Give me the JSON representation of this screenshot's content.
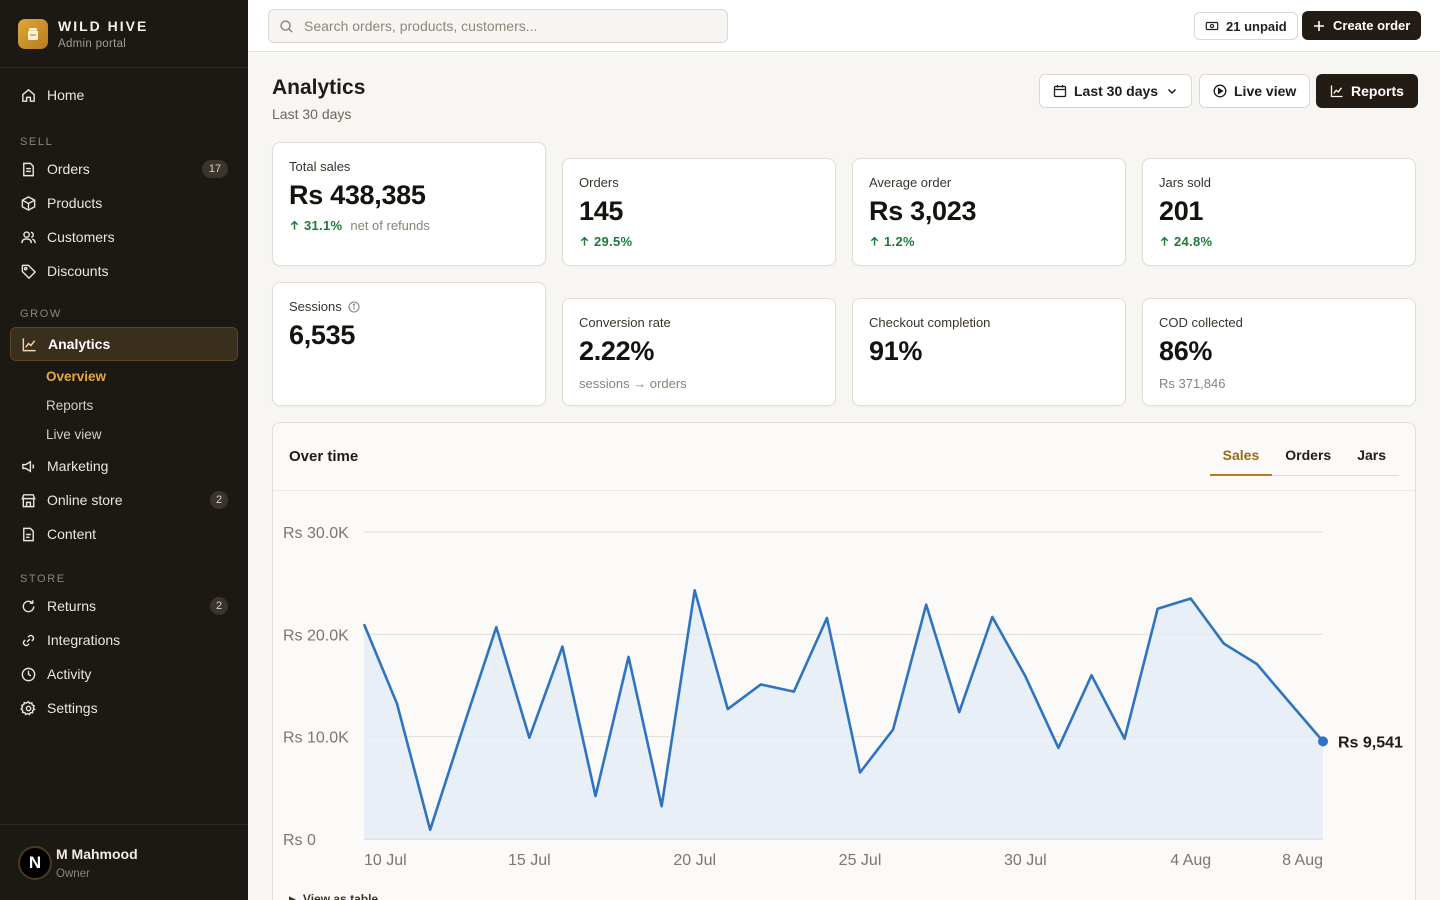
{
  "brand": {
    "name": "WILD HIVE",
    "subtitle": "Admin portal"
  },
  "nav": {
    "home": "Home",
    "sections": {
      "sell": "SELL",
      "grow": "GROW",
      "store": "STORE"
    },
    "orders": {
      "label": "Orders",
      "badge": "17"
    },
    "products": "Products",
    "customers": "Customers",
    "discounts": "Discounts",
    "analytics": "Analytics",
    "analytics_sub": [
      "Overview",
      "Reports",
      "Live view"
    ],
    "marketing": "Marketing",
    "online_store": {
      "label": "Online store",
      "badge": "2"
    },
    "content": "Content",
    "returns": {
      "label": "Returns",
      "badge": "2"
    },
    "integrations": "Integrations",
    "activity": "Activity",
    "settings": "Settings"
  },
  "user": {
    "initial": "N",
    "name": "M Mahmood",
    "role": "Owner"
  },
  "topbar": {
    "search_placeholder": "Search orders, products, customers...",
    "unpaid": "21 unpaid",
    "create": "Create order"
  },
  "page": {
    "title": "Analytics",
    "subtitle": "Last 30 days",
    "range": "Last 30 days",
    "live": "Live view",
    "reports": "Reports"
  },
  "kpis": {
    "total_sales": {
      "label": "Total sales",
      "value": "Rs 438,385",
      "delta": "31.1%",
      "note": "net of refunds"
    },
    "orders": {
      "label": "Orders",
      "value": "145",
      "delta": "29.5%"
    },
    "avg_order": {
      "label": "Average order",
      "value": "Rs 3,023",
      "delta": "1.2%"
    },
    "jars": {
      "label": "Jars sold",
      "value": "201",
      "delta": "24.8%"
    },
    "sessions": {
      "label": "Sessions",
      "value": "6,535"
    },
    "conversion": {
      "label": "Conversion rate",
      "value": "2.22%",
      "note": "sessions → orders"
    },
    "checkout": {
      "label": "Checkout completion",
      "value": "91%"
    },
    "cod": {
      "label": "COD collected",
      "value": "86%",
      "note": "Rs 371,846"
    }
  },
  "panel": {
    "title": "Over time",
    "tabs": [
      "Sales",
      "Orders",
      "Jars"
    ],
    "view_table": "View as table"
  },
  "colors": {
    "accent": "#b27d1f",
    "line": "#2f74c0",
    "area": "#e3ecf6",
    "positive": "#1d7a3a"
  },
  "chart_data": {
    "type": "area",
    "title": "",
    "xlabel": "",
    "ylabel": "",
    "ylim": [
      0,
      30000
    ],
    "yticks": [
      0,
      10000,
      20000,
      30000
    ],
    "ytick_labels": [
      "Rs 0",
      "Rs 10.0K",
      "Rs 20.0K",
      "Rs 30.0K"
    ],
    "xtick_labels": [
      "10 Jul",
      "15 Jul",
      "20 Jul",
      "25 Jul",
      "30 Jul",
      "4 Aug",
      "8 Aug"
    ],
    "xtick_index": [
      0,
      5,
      10,
      15,
      20,
      25,
      29
    ],
    "x": [
      "10 Jul",
      "11 Jul",
      "12 Jul",
      "13 Jul",
      "14 Jul",
      "15 Jul",
      "16 Jul",
      "17 Jul",
      "18 Jul",
      "19 Jul",
      "20 Jul",
      "21 Jul",
      "22 Jul",
      "23 Jul",
      "24 Jul",
      "25 Jul",
      "26 Jul",
      "27 Jul",
      "28 Jul",
      "29 Jul",
      "30 Jul",
      "31 Jul",
      "1 Aug",
      "2 Aug",
      "3 Aug",
      "4 Aug",
      "5 Aug",
      "6 Aug",
      "7 Aug",
      "8 Aug"
    ],
    "series": [
      {
        "values": [
          21000,
          13200,
          900,
          10900,
          20700,
          9900,
          18800,
          4200,
          17800,
          3200,
          24300,
          12700,
          15100,
          14400,
          21600,
          6500,
          10700,
          22900,
          12400,
          21700,
          15900,
          8900,
          16000,
          9800,
          22500,
          23500,
          19100,
          17100,
          13300,
          9541
        ]
      }
    ],
    "last_label": "Rs 9,541"
  }
}
